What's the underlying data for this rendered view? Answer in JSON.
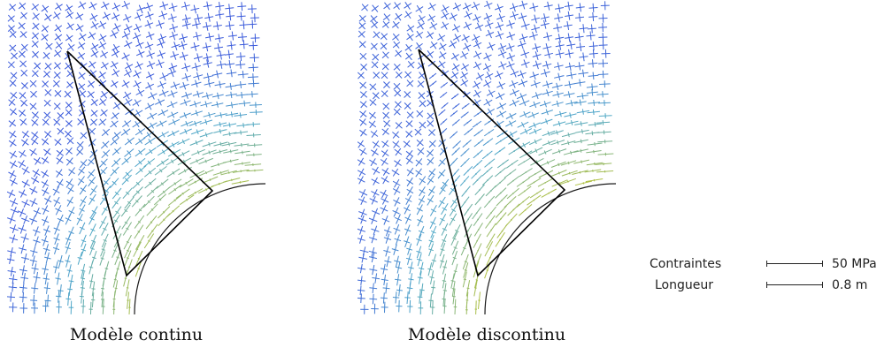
{
  "captions": {
    "continuous": "Modèle continu",
    "discontinuous": "Modèle discontinu"
  },
  "legend": {
    "stress_label": "Contraintes",
    "stress_value": "50 MPa",
    "length_label": "Longueur",
    "length_value": "0.8 m"
  },
  "colors": {
    "low_stress": "#3b5bdb",
    "mid_stress": "#4fa8c8",
    "high_stress": "#b7c23a",
    "outline": "#1a1a1a",
    "block_edge": "#000000"
  }
}
